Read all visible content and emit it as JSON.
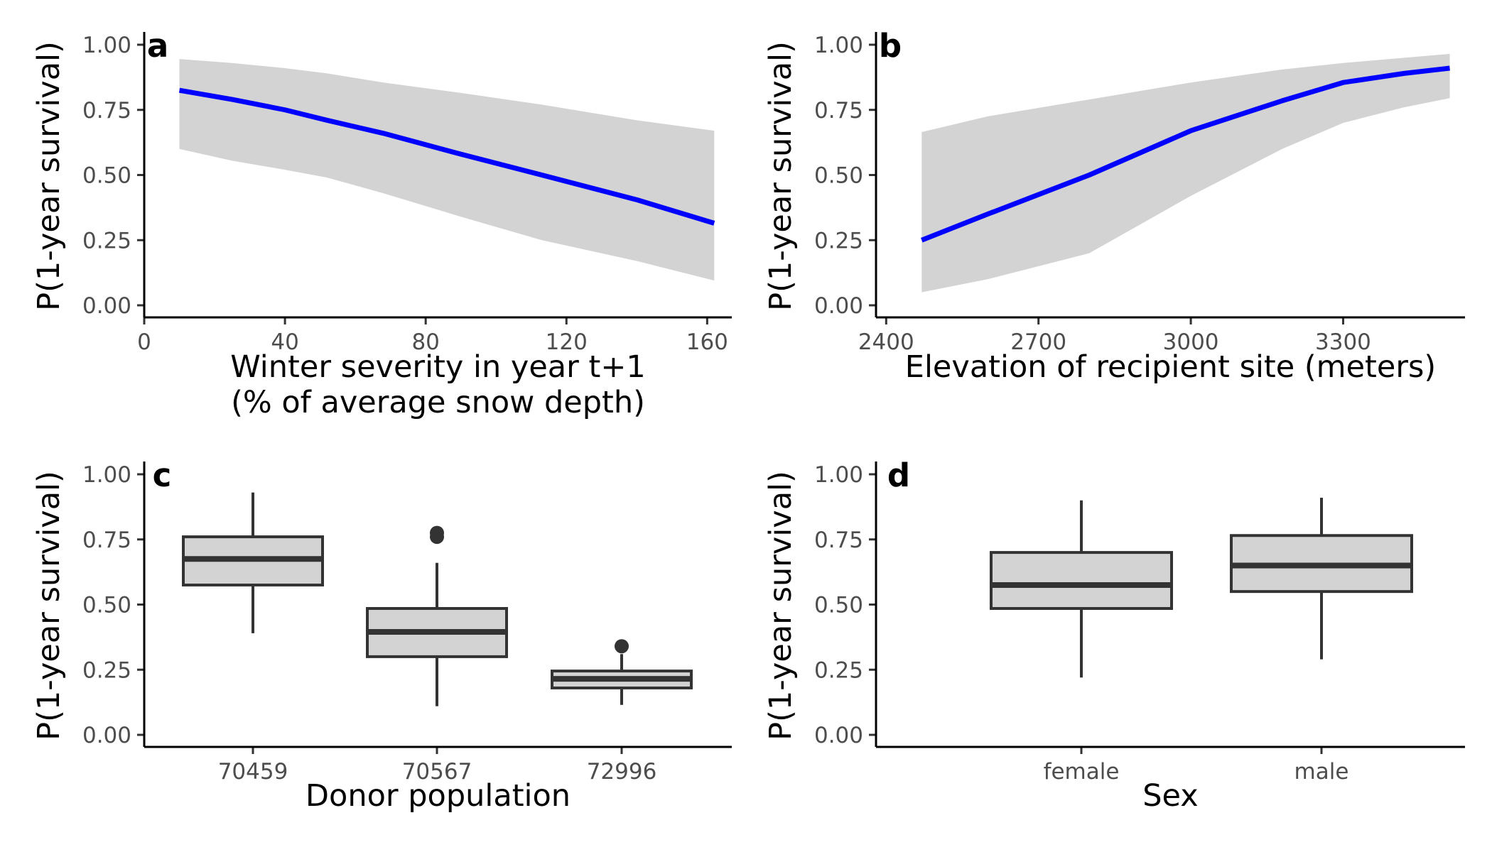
{
  "chart_data": [
    {
      "id": "a",
      "type": "line",
      "panel_label": "a",
      "xlabel": [
        "Winter severity in year t+1",
        "(% of average snow depth)"
      ],
      "ylabel": "P(1-year survival)",
      "xlim": [
        0,
        167
      ],
      "ylim": [
        0,
        1
      ],
      "xticks": [
        0,
        40,
        80,
        120,
        160
      ],
      "yticks": [
        "0.00",
        "0.25",
        "0.50",
        "0.75",
        "1.00"
      ],
      "series": [
        {
          "x": [
            10,
            25,
            40,
            52,
            68,
            90,
            113,
            140,
            162
          ],
          "y": [
            0.825,
            0.79,
            0.75,
            0.71,
            0.66,
            0.58,
            0.5,
            0.405,
            0.315
          ],
          "ci_low": [
            0.6,
            0.555,
            0.52,
            0.49,
            0.43,
            0.34,
            0.25,
            0.17,
            0.095
          ],
          "ci_high": [
            0.945,
            0.93,
            0.91,
            0.89,
            0.855,
            0.815,
            0.77,
            0.71,
            0.67
          ]
        }
      ],
      "colors": {
        "line": "#0000ff",
        "ribbon": "#d3d3d3"
      }
    },
    {
      "id": "b",
      "type": "line",
      "panel_label": "b",
      "xlabel": [
        "Elevation of recipient site (meters)"
      ],
      "ylabel": "P(1-year survival)",
      "xlim": [
        2380,
        3540
      ],
      "ylim": [
        0,
        1
      ],
      "xticks": [
        2400,
        2700,
        3000,
        3300
      ],
      "yticks": [
        "0.00",
        "0.25",
        "0.50",
        "0.75",
        "1.00"
      ],
      "series": [
        {
          "x": [
            2470,
            2600,
            2800,
            3000,
            3180,
            3300,
            3420,
            3510
          ],
          "y": [
            0.25,
            0.35,
            0.5,
            0.67,
            0.785,
            0.855,
            0.89,
            0.91
          ],
          "ci_low": [
            0.05,
            0.1,
            0.2,
            0.42,
            0.6,
            0.7,
            0.76,
            0.795
          ],
          "ci_high": [
            0.665,
            0.725,
            0.79,
            0.855,
            0.905,
            0.93,
            0.95,
            0.965
          ]
        }
      ],
      "colors": {
        "line": "#0000ff",
        "ribbon": "#d3d3d3"
      }
    },
    {
      "id": "c",
      "type": "box",
      "panel_label": "c",
      "xlabel": [
        "Donor population"
      ],
      "ylabel": "P(1-year survival)",
      "ylim": [
        0,
        1
      ],
      "yticks": [
        "0.00",
        "0.25",
        "0.50",
        "0.75",
        "1.00"
      ],
      "categories": [
        "70459",
        "70567",
        "72996"
      ],
      "boxes": [
        {
          "min": 0.39,
          "q1": 0.575,
          "median": 0.675,
          "q3": 0.76,
          "max": 0.93,
          "outliers": []
        },
        {
          "min": 0.11,
          "q1": 0.3,
          "median": 0.395,
          "q3": 0.485,
          "max": 0.66,
          "outliers": [
            0.76,
            0.775
          ]
        },
        {
          "min": 0.115,
          "q1": 0.18,
          "median": 0.215,
          "q3": 0.245,
          "max": 0.31,
          "outliers": [
            0.34
          ]
        }
      ],
      "colors": {
        "box": "#d3d3d3",
        "edge": "#333333"
      }
    },
    {
      "id": "d",
      "type": "box",
      "panel_label": "d",
      "xlabel": [
        "Sex"
      ],
      "ylabel": "P(1-year survival)",
      "ylim": [
        0,
        1
      ],
      "yticks": [
        "0.00",
        "0.25",
        "0.50",
        "0.75",
        "1.00"
      ],
      "categories": [
        "female",
        "male"
      ],
      "boxes": [
        {
          "min": 0.22,
          "q1": 0.485,
          "median": 0.575,
          "q3": 0.7,
          "max": 0.9,
          "outliers": []
        },
        {
          "min": 0.29,
          "q1": 0.55,
          "median": 0.65,
          "q3": 0.765,
          "max": 0.91,
          "outliers": []
        }
      ],
      "colors": {
        "box": "#d3d3d3",
        "edge": "#333333"
      }
    }
  ]
}
